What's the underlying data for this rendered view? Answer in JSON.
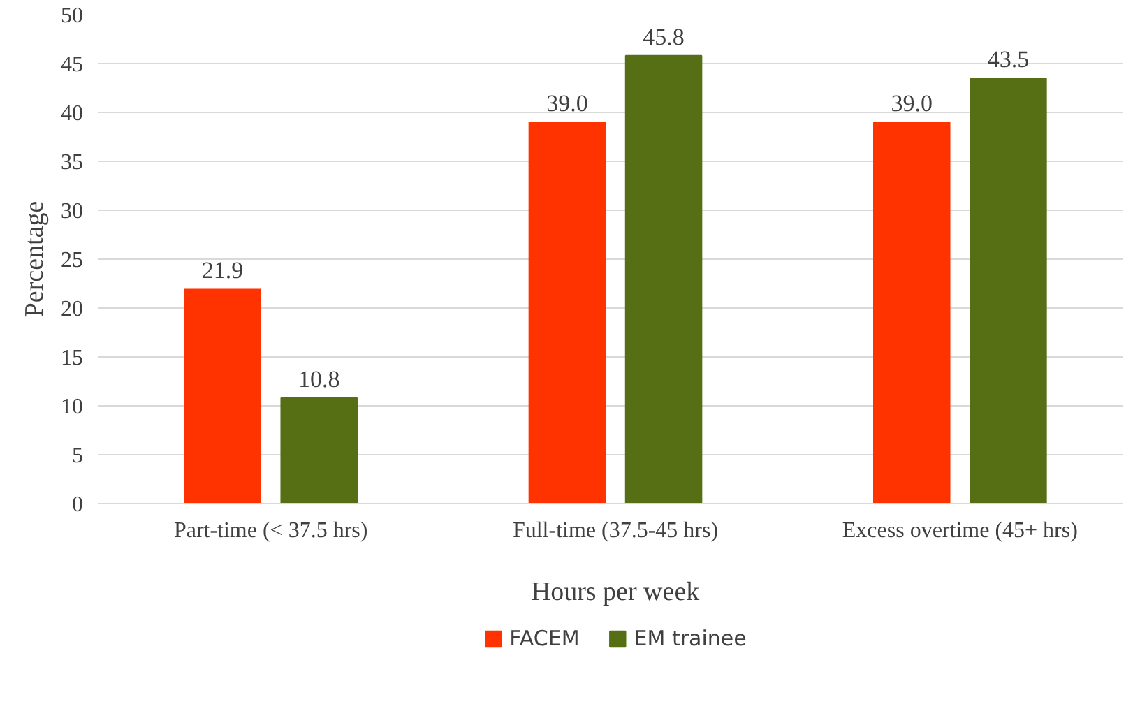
{
  "chart_data": {
    "type": "bar",
    "xlabel": "Hours per week",
    "ylabel": "Percentage",
    "categories": [
      "Part-time (< 37.5 hrs)",
      "Full-time (37.5-45 hrs)",
      "Excess overtime (45+ hrs)"
    ],
    "series": [
      {
        "name": "FACEM",
        "color": "#ff3300",
        "values": [
          21.9,
          39.0,
          39.0
        ],
        "value_labels": [
          "21.9",
          "39.0",
          "39.0"
        ]
      },
      {
        "name": "EM trainee",
        "color": "#566e14",
        "values": [
          10.8,
          45.8,
          43.5
        ],
        "value_labels": [
          "10.8",
          "45.8",
          "43.5"
        ]
      }
    ],
    "ylim": [
      0,
      50
    ],
    "yticks": [
      0,
      5,
      10,
      15,
      20,
      25,
      30,
      35,
      40,
      45,
      50
    ],
    "grid": "y",
    "legend": "bottom",
    "data_labels": true
  }
}
